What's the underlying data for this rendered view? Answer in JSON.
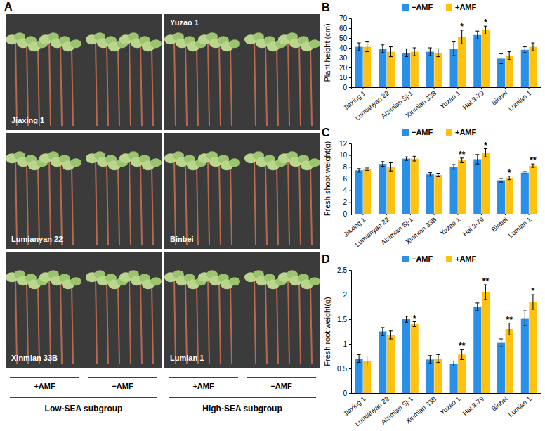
{
  "photo_panel": {
    "label": "A",
    "photos": [
      "Jiaxing 1",
      "Yuzao 1",
      "Lumianyan 22",
      "Binbei",
      "Xinmian 33B",
      "Lumian 1"
    ],
    "treatments": [
      "+AMF",
      "−AMF"
    ],
    "groups": [
      "Low-SEA subgroup",
      "High-SEA subgroup"
    ]
  },
  "chart_data": [
    {
      "type": "bar",
      "panel": "B",
      "y_label": "Plant height (cm)",
      "categories": [
        "Jiaxing 1",
        "Lumianyan 22",
        "Aizimian Sj-1",
        "Xinmian 33B",
        "Yuzao 1",
        "Hai 3-79",
        "Binbei",
        "Lumian 1"
      ],
      "series": [
        {
          "name": "−AMF",
          "color": "#2a8fe6",
          "values": [
            41,
            39,
            35,
            36,
            39,
            53,
            29,
            38
          ],
          "errors": [
            4,
            4,
            4,
            4,
            7,
            4,
            5,
            3
          ],
          "significance": [
            null,
            null,
            null,
            null,
            null,
            null,
            null,
            null
          ]
        },
        {
          "name": "+AMF",
          "color": "#ffc20e",
          "values": [
            41,
            36,
            36,
            35,
            51,
            58,
            32,
            41
          ],
          "errors": [
            5,
            5,
            4,
            4,
            7,
            4,
            4,
            4
          ],
          "significance": [
            null,
            null,
            null,
            null,
            "*",
            "*",
            null,
            null
          ]
        }
      ],
      "ylim": [
        0,
        70
      ],
      "yticks": [
        0,
        10,
        20,
        30,
        40,
        50,
        60,
        70
      ],
      "legend": "top"
    },
    {
      "type": "bar",
      "panel": "C",
      "y_label": "Fresh shoot weight(g)",
      "categories": [
        "Jiaxing 1",
        "Lumianyan 22",
        "Aizimian Sj-1",
        "Xinmian 33B",
        "Yuzao 1",
        "Hai 3-79",
        "Binbei",
        "Lumian 1"
      ],
      "series": [
        {
          "name": "−AMF",
          "color": "#2a8fe6",
          "values": [
            7.4,
            8.5,
            9.4,
            6.7,
            8.0,
            9.3,
            5.7,
            7.0
          ],
          "errors": [
            0.3,
            0.4,
            0.3,
            0.3,
            0.4,
            0.8,
            0.3,
            0.2
          ],
          "significance": [
            null,
            null,
            null,
            null,
            null,
            null,
            null,
            null
          ]
        },
        {
          "name": "+AMF",
          "color": "#ffc20e",
          "values": [
            7.6,
            8.0,
            9.4,
            6.6,
            9.1,
            10.4,
            6.1,
            8.2
          ],
          "errors": [
            0.2,
            0.7,
            0.4,
            0.3,
            0.4,
            0.7,
            0.3,
            0.3
          ],
          "significance": [
            null,
            null,
            null,
            null,
            "**",
            "*",
            "*",
            "**"
          ]
        }
      ],
      "ylim": [
        0,
        12
      ],
      "yticks": [
        0,
        2,
        4,
        6,
        8,
        10,
        12
      ],
      "legend": "top"
    },
    {
      "type": "bar",
      "panel": "D",
      "y_label": "Fresh root weight(g)",
      "categories": [
        "Jiaxing 1",
        "Lumianyan 22",
        "Aizimian Sj-1",
        "Xinmian 33B",
        "Yuzao 1",
        "Hai 3-79",
        "Binbei",
        "Lumian 1"
      ],
      "series": [
        {
          "name": "−AMF",
          "color": "#2a8fe6",
          "values": [
            0.7,
            1.25,
            1.5,
            0.68,
            0.6,
            1.75,
            1.02,
            1.52
          ],
          "errors": [
            0.08,
            0.08,
            0.06,
            0.08,
            0.05,
            0.08,
            0.08,
            0.15
          ],
          "significance": [
            null,
            null,
            null,
            null,
            null,
            null,
            null,
            null
          ]
        },
        {
          "name": "+AMF",
          "color": "#ffc20e",
          "values": [
            0.65,
            1.18,
            1.4,
            0.7,
            0.78,
            2.05,
            1.3,
            1.85
          ],
          "errors": [
            0.1,
            0.08,
            0.05,
            0.08,
            0.1,
            0.15,
            0.12,
            0.15
          ],
          "significance": [
            null,
            null,
            "*",
            null,
            "**",
            "**",
            "**",
            "*"
          ]
        }
      ],
      "ylim": [
        0,
        2.5
      ],
      "yticks": [
        0,
        0.5,
        1,
        1.5,
        2,
        2.5
      ],
      "legend": "top"
    }
  ]
}
